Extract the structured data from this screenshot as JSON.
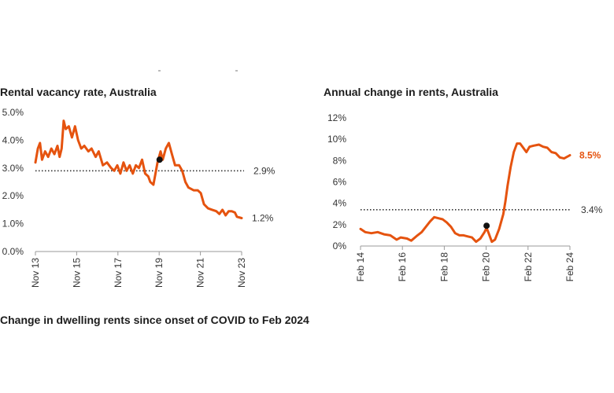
{
  "footer_title": "Change in dwelling rents since onset of COVID to Feb 2024",
  "theme": {
    "line_color": "#e5530f",
    "marker_color": "#111111",
    "ref_color": "#333333"
  },
  "chart_data": [
    {
      "type": "line",
      "title": "Rental vacancy rate, Australia",
      "xlabel": "",
      "ylabel": "",
      "x_ticks": [
        "Nov 13",
        "Nov 15",
        "Nov 17",
        "Nov 19",
        "Nov 21",
        "Nov 23"
      ],
      "y_ticks": [
        "0.0%",
        "1.0%",
        "2.0%",
        "3.0%",
        "4.0%",
        "5.0%"
      ],
      "ylim": [
        0,
        5
      ],
      "xlim": [
        2013.83,
        2023.83
      ],
      "grid": false,
      "series": [
        {
          "points": [
            [
              2013.83,
              3.2
            ],
            [
              2013.95,
              3.7
            ],
            [
              2014.05,
              3.9
            ],
            [
              2014.15,
              3.3
            ],
            [
              2014.3,
              3.6
            ],
            [
              2014.45,
              3.4
            ],
            [
              2014.6,
              3.7
            ],
            [
              2014.75,
              3.5
            ],
            [
              2014.9,
              3.8
            ],
            [
              2015.0,
              3.4
            ],
            [
              2015.1,
              3.7
            ],
            [
              2015.2,
              4.7
            ],
            [
              2015.3,
              4.4
            ],
            [
              2015.45,
              4.5
            ],
            [
              2015.6,
              4.1
            ],
            [
              2015.75,
              4.5
            ],
            [
              2015.9,
              4.0
            ],
            [
              2016.05,
              3.7
            ],
            [
              2016.2,
              3.8
            ],
            [
              2016.4,
              3.6
            ],
            [
              2016.55,
              3.7
            ],
            [
              2016.75,
              3.4
            ],
            [
              2016.9,
              3.6
            ],
            [
              2017.1,
              3.1
            ],
            [
              2017.3,
              3.2
            ],
            [
              2017.5,
              3.0
            ],
            [
              2017.65,
              2.9
            ],
            [
              2017.8,
              3.1
            ],
            [
              2017.95,
              2.8
            ],
            [
              2018.1,
              3.2
            ],
            [
              2018.25,
              2.9
            ],
            [
              2018.4,
              3.1
            ],
            [
              2018.55,
              2.8
            ],
            [
              2018.7,
              3.1
            ],
            [
              2018.85,
              3.0
            ],
            [
              2019.0,
              3.3
            ],
            [
              2019.15,
              2.8
            ],
            [
              2019.3,
              2.7
            ],
            [
              2019.4,
              2.5
            ],
            [
              2019.55,
              2.4
            ],
            [
              2019.75,
              3.2
            ],
            [
              2019.9,
              3.6
            ],
            [
              2020.0,
              3.3
            ],
            [
              2020.15,
              3.7
            ],
            [
              2020.3,
              3.9
            ],
            [
              2020.45,
              3.5
            ],
            [
              2020.6,
              3.1
            ],
            [
              2020.8,
              3.1
            ],
            [
              2020.95,
              2.9
            ],
            [
              2021.1,
              2.5
            ],
            [
              2021.25,
              2.3
            ],
            [
              2021.5,
              2.2
            ],
            [
              2021.7,
              2.2
            ],
            [
              2021.85,
              2.1
            ],
            [
              2022.0,
              1.7
            ],
            [
              2022.2,
              1.55
            ],
            [
              2022.4,
              1.5
            ],
            [
              2022.6,
              1.45
            ],
            [
              2022.75,
              1.35
            ],
            [
              2022.9,
              1.5
            ],
            [
              2023.05,
              1.3
            ],
            [
              2023.2,
              1.45
            ],
            [
              2023.35,
              1.45
            ],
            [
              2023.5,
              1.4
            ],
            [
              2023.6,
              1.25
            ],
            [
              2023.83,
              1.2
            ]
          ]
        }
      ],
      "reference_line": {
        "value": 2.9,
        "label": "2.9%"
      },
      "end_label": "1.2%",
      "marker": {
        "x": 2019.85,
        "y": 3.3
      }
    },
    {
      "type": "line",
      "title": "Annual change in rents, Australia",
      "xlabel": "",
      "ylabel": "",
      "x_ticks": [
        "Feb 14",
        "Feb 16",
        "Feb 18",
        "Feb 20",
        "Feb 22",
        "Feb 24"
      ],
      "y_ticks": [
        "0%",
        "2%",
        "4%",
        "6%",
        "8%",
        "10%",
        "12%"
      ],
      "ylim": [
        0,
        12
      ],
      "xlim": [
        2014.08,
        2024.08
      ],
      "grid": false,
      "series": [
        {
          "points": [
            [
              2014.08,
              1.6
            ],
            [
              2014.3,
              1.3
            ],
            [
              2014.6,
              1.2
            ],
            [
              2014.9,
              1.3
            ],
            [
              2015.2,
              1.1
            ],
            [
              2015.5,
              1.0
            ],
            [
              2015.8,
              0.6
            ],
            [
              2016.0,
              0.8
            ],
            [
              2016.3,
              0.7
            ],
            [
              2016.5,
              0.5
            ],
            [
              2016.8,
              1.0
            ],
            [
              2017.0,
              1.3
            ],
            [
              2017.2,
              1.8
            ],
            [
              2017.4,
              2.3
            ],
            [
              2017.6,
              2.7
            ],
            [
              2017.8,
              2.6
            ],
            [
              2018.0,
              2.5
            ],
            [
              2018.2,
              2.2
            ],
            [
              2018.4,
              1.8
            ],
            [
              2018.6,
              1.2
            ],
            [
              2018.8,
              1.0
            ],
            [
              2019.0,
              1.0
            ],
            [
              2019.2,
              0.9
            ],
            [
              2019.4,
              0.8
            ],
            [
              2019.6,
              0.4
            ],
            [
              2019.8,
              0.7
            ],
            [
              2020.0,
              1.3
            ],
            [
              2020.1,
              1.7
            ],
            [
              2020.2,
              1.2
            ],
            [
              2020.35,
              0.4
            ],
            [
              2020.5,
              0.6
            ],
            [
              2020.7,
              1.6
            ],
            [
              2020.9,
              3.0
            ],
            [
              2021.0,
              4.2
            ],
            [
              2021.1,
              5.6
            ],
            [
              2021.25,
              7.4
            ],
            [
              2021.4,
              8.8
            ],
            [
              2021.55,
              9.6
            ],
            [
              2021.7,
              9.6
            ],
            [
              2021.85,
              9.2
            ],
            [
              2022.0,
              8.8
            ],
            [
              2022.15,
              9.3
            ],
            [
              2022.35,
              9.4
            ],
            [
              2022.6,
              9.5
            ],
            [
              2022.8,
              9.3
            ],
            [
              2023.0,
              9.2
            ],
            [
              2023.2,
              8.8
            ],
            [
              2023.4,
              8.7
            ],
            [
              2023.6,
              8.3
            ],
            [
              2023.8,
              8.2
            ],
            [
              2024.08,
              8.5
            ]
          ]
        }
      ],
      "reference_line": {
        "value": 3.4,
        "label": "3.4%"
      },
      "end_label": "8.5%",
      "marker": {
        "x": 2020.1,
        "y": 1.9
      }
    }
  ]
}
